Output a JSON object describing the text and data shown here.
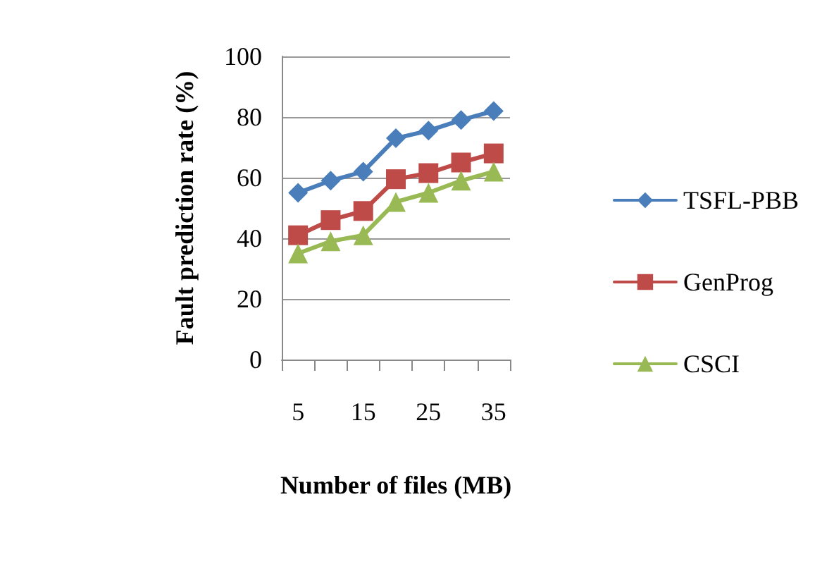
{
  "chart_data": {
    "type": "line",
    "xlabel": "Number of files (MB)",
    "ylabel": "Fault prediction rate (%)",
    "categories": [
      "5",
      null,
      "15",
      null,
      "25",
      null,
      "35"
    ],
    "series": [
      {
        "name": "TSFL-PBB",
        "color": "#4a7ebb",
        "marker": "diamond",
        "values": [
          55,
          59,
          62,
          73,
          75.5,
          79,
          82
        ]
      },
      {
        "name": "GenProg",
        "color": "#be4b48",
        "marker": "square",
        "values": [
          41,
          46,
          49,
          59.5,
          61.5,
          65,
          68
        ]
      },
      {
        "name": "CSCI",
        "color": "#98b954",
        "marker": "triangle",
        "values": [
          35,
          39,
          41,
          52,
          55,
          59,
          62
        ]
      }
    ],
    "ylim": [
      0,
      100
    ],
    "yticks": [
      0,
      20,
      40,
      60,
      80,
      100
    ],
    "grid": "y",
    "legend": "right",
    "line_style": "solid"
  }
}
